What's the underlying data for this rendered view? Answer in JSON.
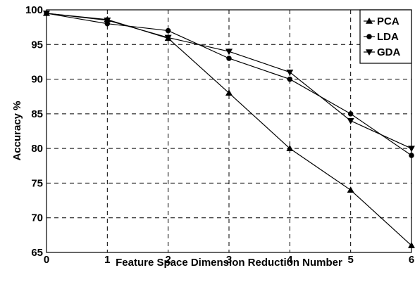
{
  "chart_data": {
    "type": "line",
    "xlabel": "Feature Space Dimension Reduction Number",
    "ylabel": "Accuracy %",
    "x": [
      0,
      1,
      2,
      3,
      4,
      5,
      6
    ],
    "xlim": [
      0,
      6
    ],
    "ylim": [
      65,
      100
    ],
    "xticks": [
      "0",
      "1",
      "2",
      "3",
      "4",
      "5",
      "6"
    ],
    "yticks": [
      "65",
      "70",
      "75",
      "80",
      "85",
      "90",
      "95",
      "100"
    ],
    "grid": true,
    "legend_position": "top-right",
    "series": [
      {
        "name": "PCA",
        "marker": "triangle-up",
        "values": [
          99.5,
          98.6,
          95.9,
          88,
          80,
          74,
          66
        ]
      },
      {
        "name": "LDA",
        "marker": "circle",
        "values": [
          99.5,
          98,
          97,
          93,
          90,
          85,
          79
        ]
      },
      {
        "name": "GDA",
        "marker": "triangle-down",
        "values": [
          99.5,
          98.5,
          96,
          94,
          91,
          84,
          80
        ]
      }
    ]
  }
}
